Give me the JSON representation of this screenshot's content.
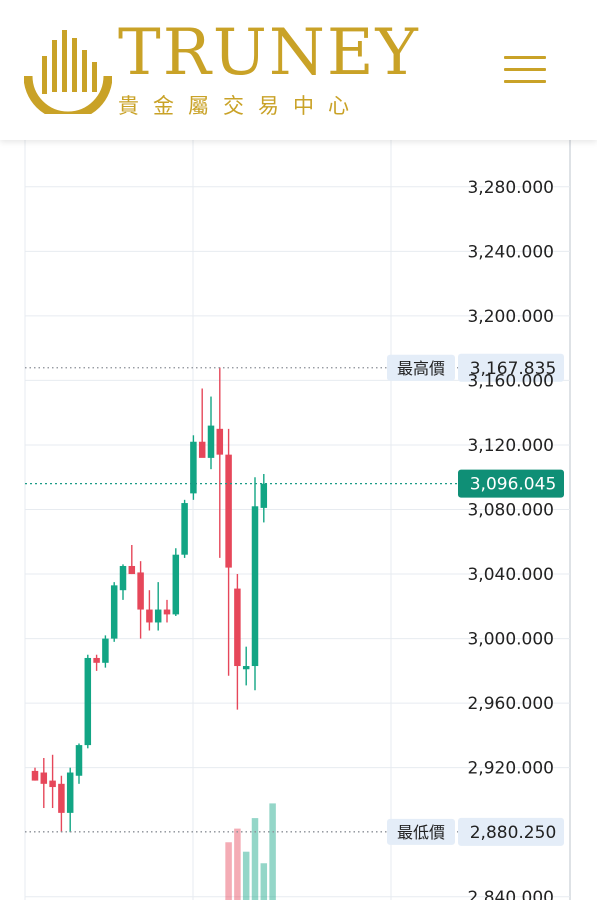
{
  "header": {
    "brand": "TRUNEY",
    "tagline": "貴金屬交易中心",
    "logo_icon": "bar-chart-arc-logo-icon",
    "menu_icon": "hamburger-menu-icon"
  },
  "colors": {
    "gold": "#c9a227",
    "up": "#12a584",
    "down": "#e6475a",
    "grid": "#e7ebf0",
    "label_bg": "#e4edf8",
    "current_bg": "#0f8f76"
  },
  "chart_data": {
    "type": "candlestick",
    "y_ticks": [
      "3,280.000",
      "3,240.000",
      "3,200.000",
      "3,160.000",
      "3,120.000",
      "3,080.000",
      "3,040.000",
      "3,000.000",
      "2,960.000",
      "2,920.000",
      "2,840.000"
    ],
    "y_tick_values": [
      3280,
      3240,
      3200,
      3160,
      3120,
      3080,
      3040,
      3000,
      2960,
      2920,
      2840
    ],
    "ylim": [
      2838,
      3309
    ],
    "grid": true,
    "high_label": "最高價",
    "high_value": "3,167.835",
    "high": 3167.835,
    "low_label": "最低價",
    "low_value": "2,880.250",
    "low": 2880.25,
    "current_value": "3,096.045",
    "current": 3096.045,
    "candles": [
      {
        "o": 2918,
        "h": 2920,
        "l": 2912,
        "c": 2912
      },
      {
        "o": 2917,
        "h": 2926,
        "l": 2895,
        "c": 2910
      },
      {
        "o": 2912,
        "h": 2928,
        "l": 2895,
        "c": 2908
      },
      {
        "o": 2910,
        "h": 2915,
        "l": 2880,
        "c": 2892
      },
      {
        "o": 2892,
        "h": 2920,
        "l": 2880,
        "c": 2917
      },
      {
        "o": 2915,
        "h": 2935,
        "l": 2910,
        "c": 2934
      },
      {
        "o": 2934,
        "h": 2990,
        "l": 2932,
        "c": 2988
      },
      {
        "o": 2988,
        "h": 2990,
        "l": 2980,
        "c": 2985
      },
      {
        "o": 2985,
        "h": 3002,
        "l": 2982,
        "c": 3000
      },
      {
        "o": 3000,
        "h": 3035,
        "l": 2998,
        "c": 3033
      },
      {
        "o": 3030,
        "h": 3046,
        "l": 3024,
        "c": 3045
      },
      {
        "o": 3045,
        "h": 3058,
        "l": 3040,
        "c": 3040
      },
      {
        "o": 3041,
        "h": 3048,
        "l": 3000,
        "c": 3018
      },
      {
        "o": 3018,
        "h": 3030,
        "l": 3005,
        "c": 3010
      },
      {
        "o": 3010,
        "h": 3035,
        "l": 3005,
        "c": 3018
      },
      {
        "o": 3018,
        "h": 3024,
        "l": 3010,
        "c": 3015
      },
      {
        "o": 3015,
        "h": 3056,
        "l": 3014,
        "c": 3052
      },
      {
        "o": 3052,
        "h": 3086,
        "l": 3050,
        "c": 3084
      },
      {
        "o": 3090,
        "h": 3126,
        "l": 3086,
        "c": 3122
      },
      {
        "o": 3122,
        "h": 3155,
        "l": 3115,
        "c": 3112
      },
      {
        "o": 3112,
        "h": 3150,
        "l": 3105,
        "c": 3132
      },
      {
        "o": 3130,
        "h": 3168,
        "l": 3050,
        "c": 3114
      },
      {
        "o": 3114,
        "h": 3130,
        "l": 2977,
        "c": 3044
      },
      {
        "o": 3031,
        "h": 3040,
        "l": 2956,
        "c": 2983
      },
      {
        "o": 2981,
        "h": 2995,
        "l": 2971,
        "c": 2983
      },
      {
        "o": 2983,
        "h": 3100,
        "l": 2968,
        "c": 3082
      },
      {
        "o": 3081,
        "h": 3102,
        "l": 3072,
        "c": 3096
      }
    ],
    "volume": [
      {
        "index": 22,
        "v": 0.55
      },
      {
        "index": 23,
        "v": 0.68
      },
      {
        "index": 24,
        "v": 0.46
      },
      {
        "index": 25,
        "v": 0.78
      },
      {
        "index": 26,
        "v": 0.35
      },
      {
        "index": 27,
        "v": 0.92
      }
    ]
  }
}
